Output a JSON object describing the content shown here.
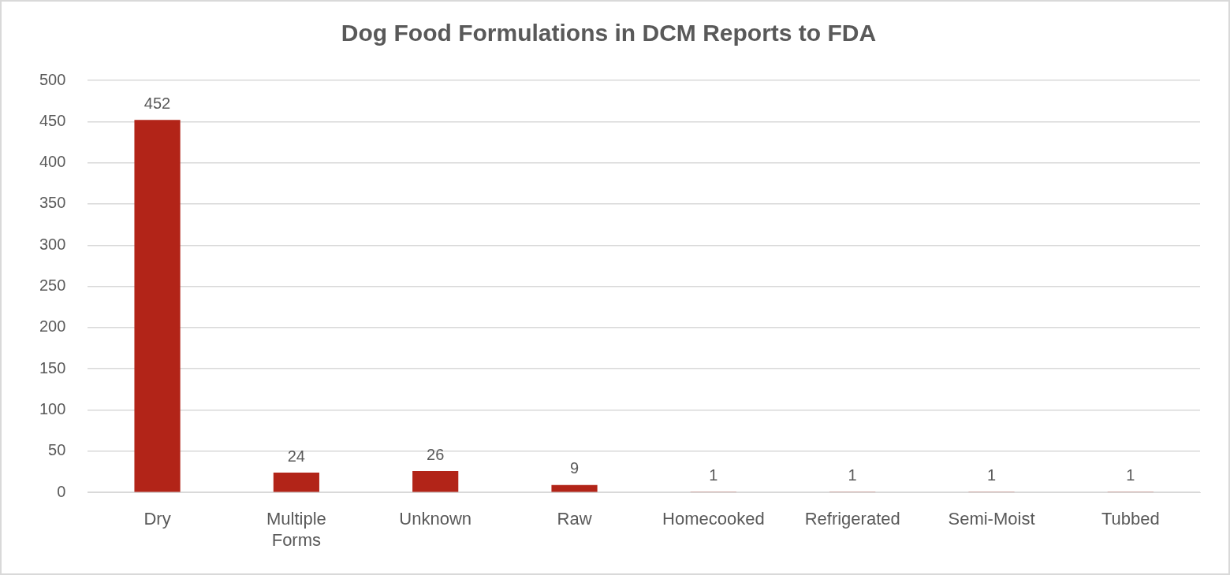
{
  "chart_data": {
    "type": "bar",
    "title": "Dog Food Formulations in DCM Reports to FDA",
    "categories": [
      "Dry",
      "Multiple Forms",
      "Unknown",
      "Raw",
      "Homecooked",
      "Refrigerated",
      "Semi-Moist",
      "Tubbed"
    ],
    "values": [
      452,
      24,
      26,
      9,
      1,
      1,
      1,
      1
    ],
    "color": "#b22418",
    "ylim": [
      0,
      500
    ],
    "yticks": [
      0,
      50,
      100,
      150,
      200,
      250,
      300,
      350,
      400,
      450,
      500
    ],
    "grid": true,
    "data_labels": true
  }
}
